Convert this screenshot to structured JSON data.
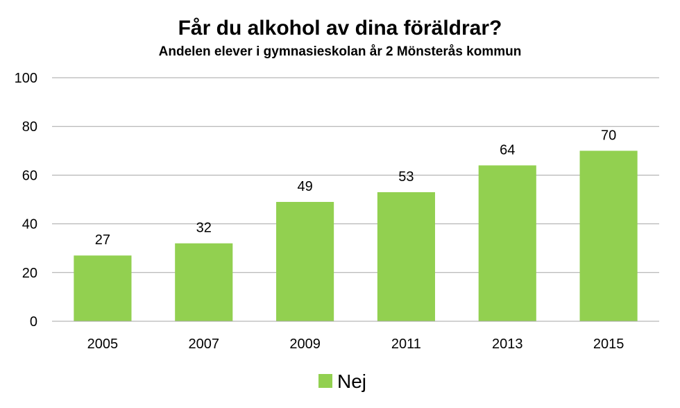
{
  "chart_data": {
    "type": "bar",
    "title": "Får du alkohol av dina föräldrar?",
    "subtitle": "Andelen elever i gymnasieskolan år 2 Mönsterås kommun",
    "categories": [
      "2005",
      "2007",
      "2009",
      "2011",
      "2013",
      "2015"
    ],
    "series": [
      {
        "name": "Nej",
        "values": [
          27,
          32,
          49,
          53,
          64,
          70
        ],
        "color": "#92d050"
      }
    ],
    "ylim": [
      0,
      100
    ],
    "yticks": [
      "0",
      "20",
      "40",
      "60",
      "80",
      "100"
    ],
    "grid": true,
    "data_labels": true,
    "legend": "bottom-center",
    "xlabel": "",
    "ylabel": ""
  }
}
